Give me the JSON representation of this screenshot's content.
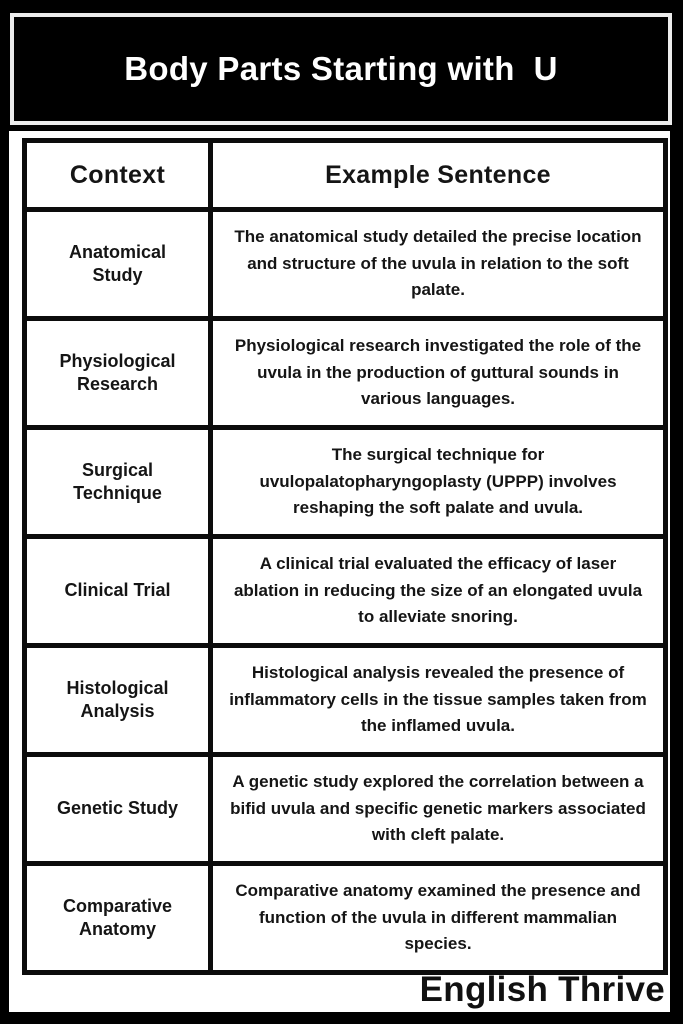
{
  "header": {
    "title": "Body Parts Starting with  U"
  },
  "table": {
    "headers": [
      "Context",
      "Example Sentence"
    ],
    "rows": [
      {
        "context": "Anatomical Study",
        "sentence": "The anatomical study detailed the precise location and structure of the uvula in relation to the soft palate."
      },
      {
        "context": "Physiological Research",
        "sentence": "Physiological research investigated the role of the uvula in the production of guttural sounds in various languages."
      },
      {
        "context": "Surgical Technique",
        "sentence": "The surgical technique for uvulopalatopharyngoplasty (UPPP) involves reshaping the soft palate and uvula."
      },
      {
        "context": "Clinical Trial",
        "sentence": "A clinical trial evaluated the efficacy of laser ablation in reducing the size of an elongated uvula to alleviate snoring."
      },
      {
        "context": "Histological Analysis",
        "sentence": "Histological analysis revealed the presence of inflammatory cells in the tissue samples taken from the inflamed uvula."
      },
      {
        "context": "Genetic Study",
        "sentence": "A genetic study explored the correlation between a bifid uvula and specific genetic markers associated with cleft palate."
      },
      {
        "context": "Comparative Anatomy",
        "sentence": "Comparative anatomy examined the presence and function of the uvula in different mammalian species."
      }
    ]
  },
  "footer": {
    "brand": "English Thrive"
  },
  "colors": {
    "page_background": "#000000",
    "panel_background": "#ffffff",
    "table_border": "#0c0c0c",
    "title_border": "#ececec",
    "title_text": "#ffffff",
    "body_text": "#151515"
  }
}
